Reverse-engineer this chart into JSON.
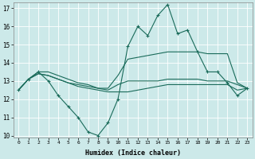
{
  "xlabel": "Humidex (Indice chaleur)",
  "x": [
    0,
    1,
    2,
    3,
    4,
    5,
    6,
    7,
    8,
    9,
    10,
    11,
    12,
    13,
    14,
    15,
    16,
    17,
    18,
    19,
    20,
    21,
    22,
    23
  ],
  "line_jagged": [
    12.5,
    13.1,
    13.5,
    13.0,
    12.2,
    11.6,
    11.0,
    10.2,
    10.0,
    10.7,
    12.0,
    14.9,
    16.0,
    15.5,
    16.6,
    17.2,
    15.6,
    15.8,
    14.6,
    13.5,
    13.5,
    12.9,
    12.2,
    12.6
  ],
  "line_upper": [
    12.5,
    13.1,
    13.5,
    13.5,
    13.3,
    13.1,
    12.9,
    12.8,
    12.6,
    12.6,
    13.3,
    14.2,
    14.3,
    14.4,
    14.5,
    14.6,
    14.6,
    14.6,
    14.6,
    14.5,
    14.5,
    14.5,
    12.9,
    12.6
  ],
  "line_mid": [
    12.5,
    13.1,
    13.4,
    13.3,
    13.1,
    12.9,
    12.8,
    12.7,
    12.6,
    12.5,
    12.8,
    13.0,
    13.0,
    13.0,
    13.0,
    13.1,
    13.1,
    13.1,
    13.1,
    13.0,
    13.0,
    13.0,
    12.8,
    12.6
  ],
  "line_lower": [
    12.5,
    13.1,
    13.4,
    13.3,
    13.1,
    12.9,
    12.7,
    12.6,
    12.5,
    12.4,
    12.4,
    12.4,
    12.5,
    12.6,
    12.7,
    12.8,
    12.8,
    12.8,
    12.8,
    12.8,
    12.8,
    12.8,
    12.5,
    12.6
  ],
  "ylim": [
    9.9,
    17.3
  ],
  "yticks": [
    10,
    11,
    12,
    13,
    14,
    15,
    16,
    17
  ],
  "bg_color": "#cce9e9",
  "grid_color": "#ffffff",
  "line_color": "#1a6b5a"
}
